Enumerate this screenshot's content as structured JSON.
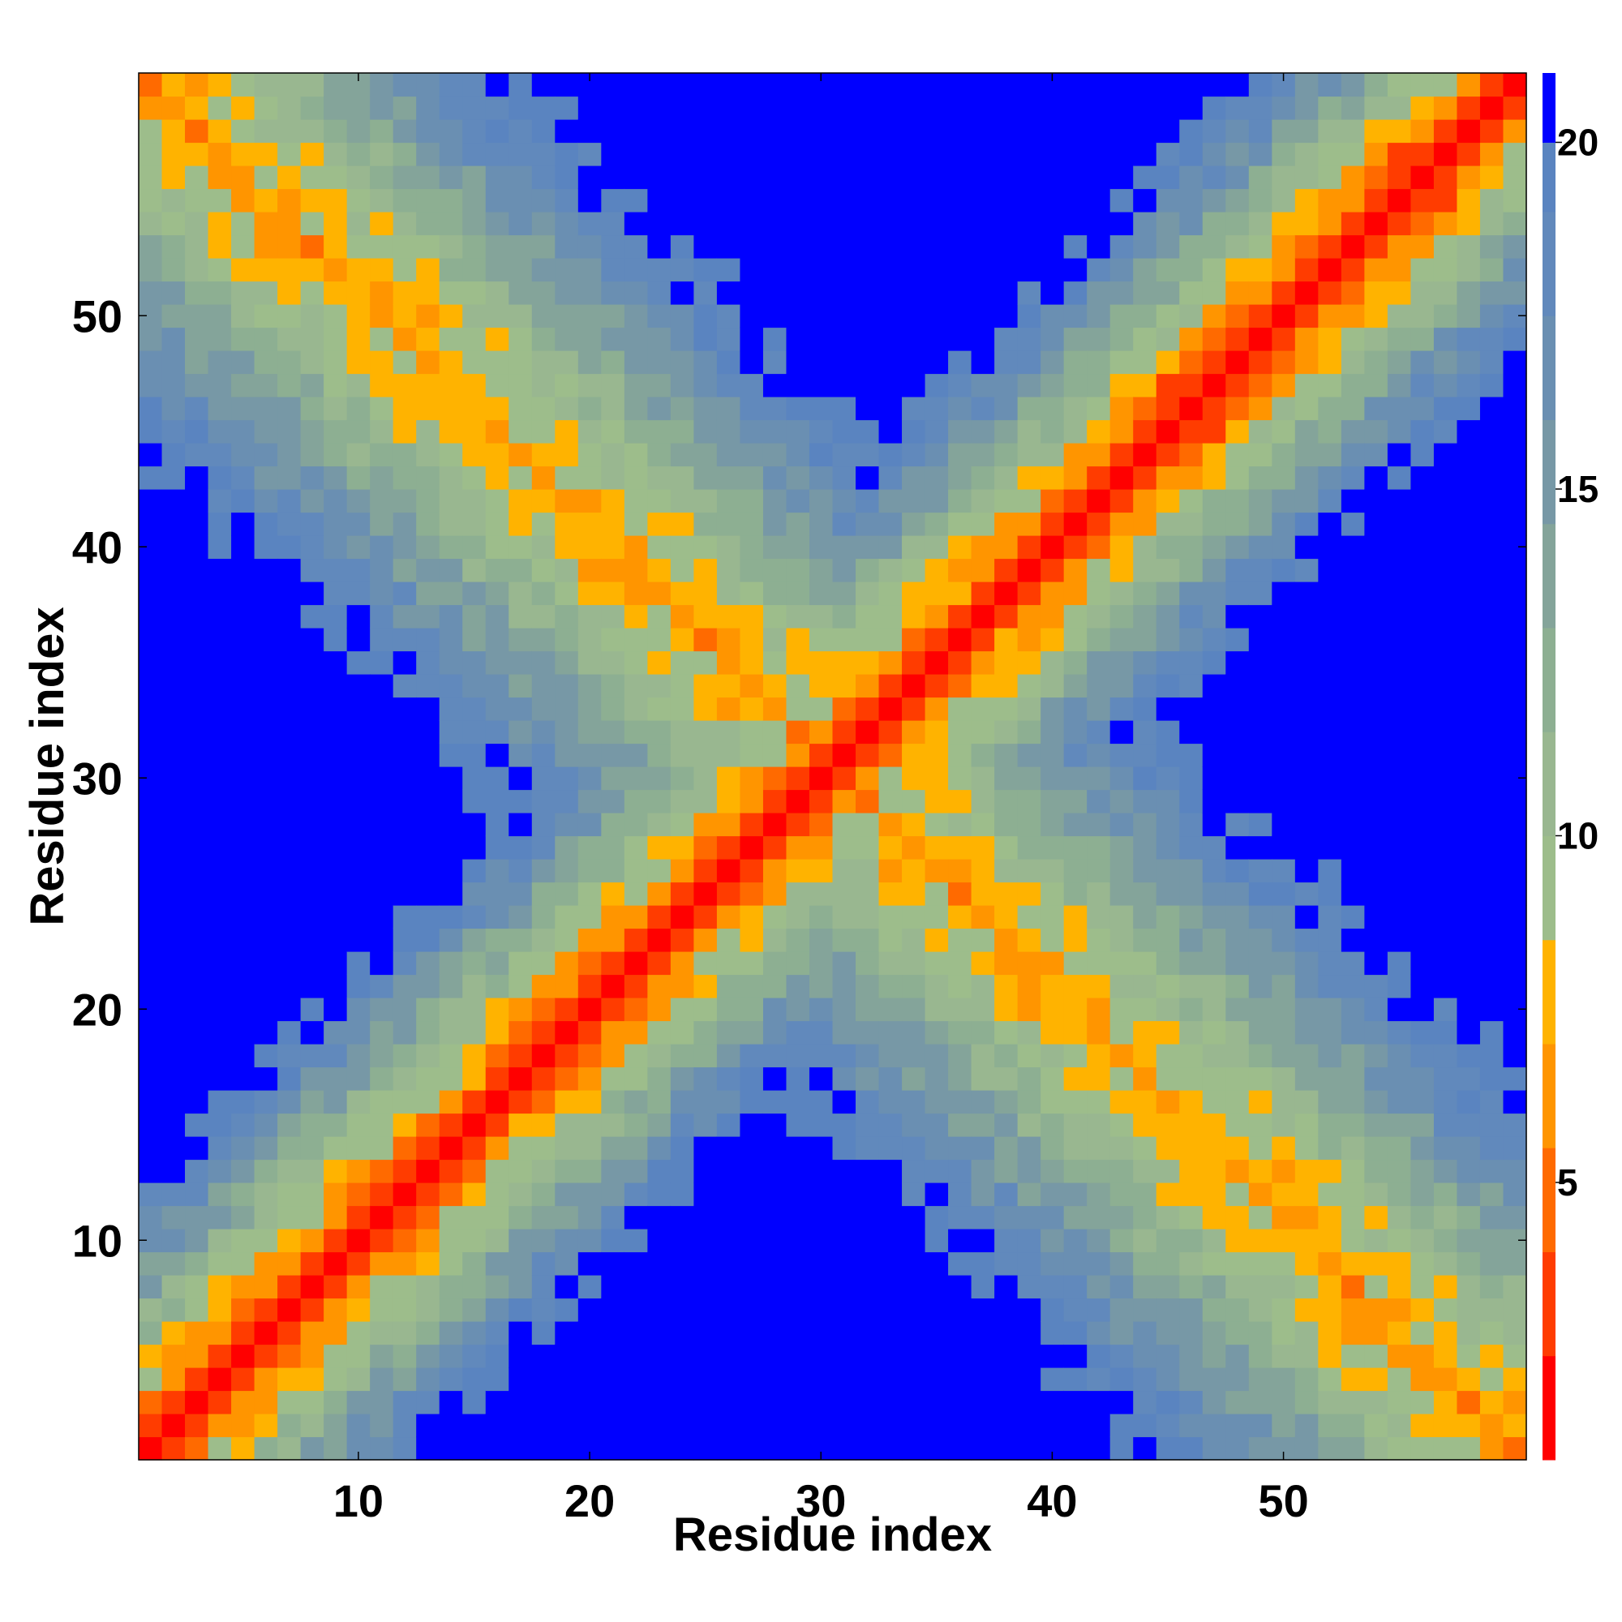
{
  "chart_data": {
    "type": "heatmap",
    "title": "",
    "xlabel": "Residue index",
    "ylabel": "Residue index",
    "n_residues": 60,
    "xlim": [
      0.5,
      60.5
    ],
    "ylim": [
      0.5,
      60.5
    ],
    "x_ticks": [
      10,
      20,
      30,
      40,
      50
    ],
    "y_ticks": [
      10,
      20,
      30,
      40,
      50
    ],
    "colorbar": {
      "range": [
        1,
        21
      ],
      "ticks": [
        5,
        10,
        15,
        20
      ],
      "levels": [
        {
          "min": 1,
          "max": 2.5,
          "color": "#ff0000"
        },
        {
          "min": 2.5,
          "max": 4,
          "color": "#ff3c00"
        },
        {
          "min": 4,
          "max": 5.5,
          "color": "#ff6a00"
        },
        {
          "min": 5.5,
          "max": 7,
          "color": "#ff9500"
        },
        {
          "min": 7,
          "max": 8.5,
          "color": "#ffb300"
        },
        {
          "min": 8.5,
          "max": 10,
          "color": "#9dbd8b"
        },
        {
          "min": 10,
          "max": 11.5,
          "color": "#99b790"
        },
        {
          "min": 11.5,
          "max": 13,
          "color": "#8daf92"
        },
        {
          "min": 13,
          "max": 14.5,
          "color": "#84a49a"
        },
        {
          "min": 14.5,
          "max": 16,
          "color": "#7798a6"
        },
        {
          "min": 16,
          "max": 17.5,
          "color": "#6a8fb2"
        },
        {
          "min": 17.5,
          "max": 19,
          "color": "#6189bc"
        },
        {
          "min": 19,
          "max": 20,
          "color": "#5a84c0"
        },
        {
          "min": 20,
          "max": 21,
          "color": "#0000ff"
        }
      ]
    },
    "description_of_values": "Symmetric residue-residue distance matrix; value ~1 on the diagonal, increasing with |i-j| and saturating at 21 (blue) far from the diagonals; an anti-diagonal band of close contacts runs from (1,60) to (60,1).",
    "band_profile": [
      [
        0,
        1.5
      ],
      [
        1,
        2.5
      ],
      [
        2,
        5.5
      ],
      [
        3,
        7.5
      ],
      [
        4,
        9
      ],
      [
        5,
        10.5
      ],
      [
        6,
        12
      ],
      [
        7,
        13.5
      ],
      [
        8,
        15
      ],
      [
        9,
        16.5
      ],
      [
        10,
        18
      ],
      [
        11,
        19.5
      ],
      [
        12,
        20.5
      ],
      [
        13,
        21
      ]
    ],
    "antidiagonal_profile": [
      [
        0,
        6.5
      ],
      [
        1,
        8
      ],
      [
        2,
        9
      ],
      [
        3,
        10.5
      ],
      [
        4,
        12
      ],
      [
        5,
        13.5
      ],
      [
        6,
        15
      ],
      [
        7,
        16.5
      ],
      [
        8,
        18
      ],
      [
        9,
        19.5
      ],
      [
        10,
        20.5
      ],
      [
        11,
        21
      ]
    ]
  },
  "colors": {
    "background": "#ffffff",
    "far": "#0000ff",
    "contact": "#ff0000"
  }
}
